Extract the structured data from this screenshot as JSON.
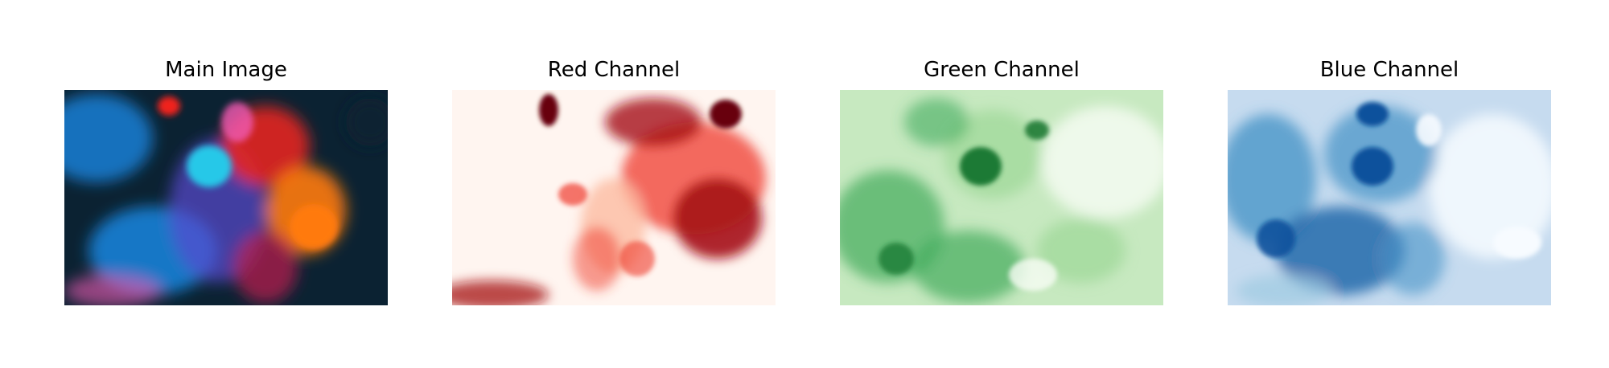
{
  "figure": {
    "panels": [
      {
        "id": "main",
        "title": "Main Image",
        "colormap": "rgb",
        "colors": {
          "bg": "#0b2232",
          "blue": "#1586e0",
          "cyan": "#25c8e8",
          "red": "#f0241c",
          "orange": "#ff7a0a",
          "pink": "#f05ab4",
          "purple": "#5a4ad0"
        }
      },
      {
        "id": "red",
        "title": "Red Channel",
        "colormap": "Reds",
        "colors": {
          "bg": "#fff5f0",
          "light": "#fcbba1",
          "mid": "#ef3b2c",
          "dark": "#a50f15",
          "darkest": "#67000d"
        }
      },
      {
        "id": "green",
        "title": "Green Channel",
        "colormap": "Greens",
        "colors": {
          "bg": "#c7e9c0",
          "light": "#a1d99b",
          "mid": "#41ab5d",
          "dark": "#1d7a35",
          "white": "#f7fcf5"
        }
      },
      {
        "id": "blue",
        "title": "Blue Channel",
        "colormap": "Blues",
        "colors": {
          "bg": "#c6dbef",
          "light": "#9ecae1",
          "mid": "#4292c6",
          "dark": "#08519c",
          "white": "#f7fbff"
        }
      }
    ]
  }
}
